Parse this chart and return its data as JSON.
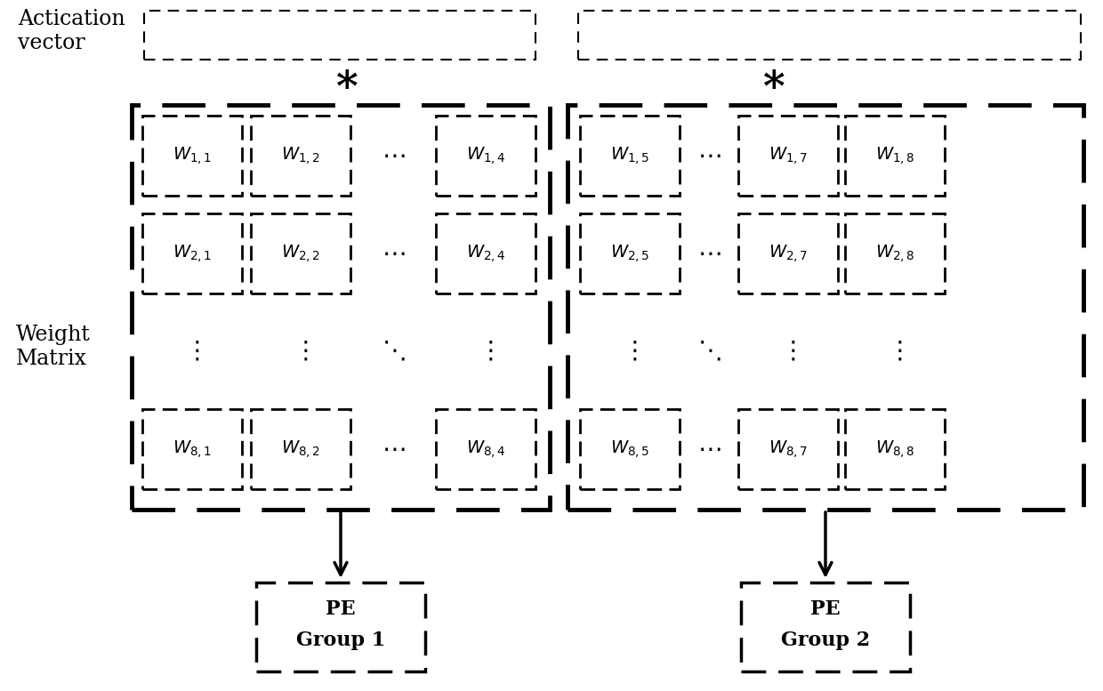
{
  "background_color": "#ffffff",
  "fig_width": 12.4,
  "fig_height": 7.77,
  "label_actication": "Actication\nvector",
  "label_weight": "Weight\nMatrix",
  "group1_pe": "PE\nGroup 1",
  "group2_pe": "PE\nGroup 2",
  "asterisk": "*"
}
